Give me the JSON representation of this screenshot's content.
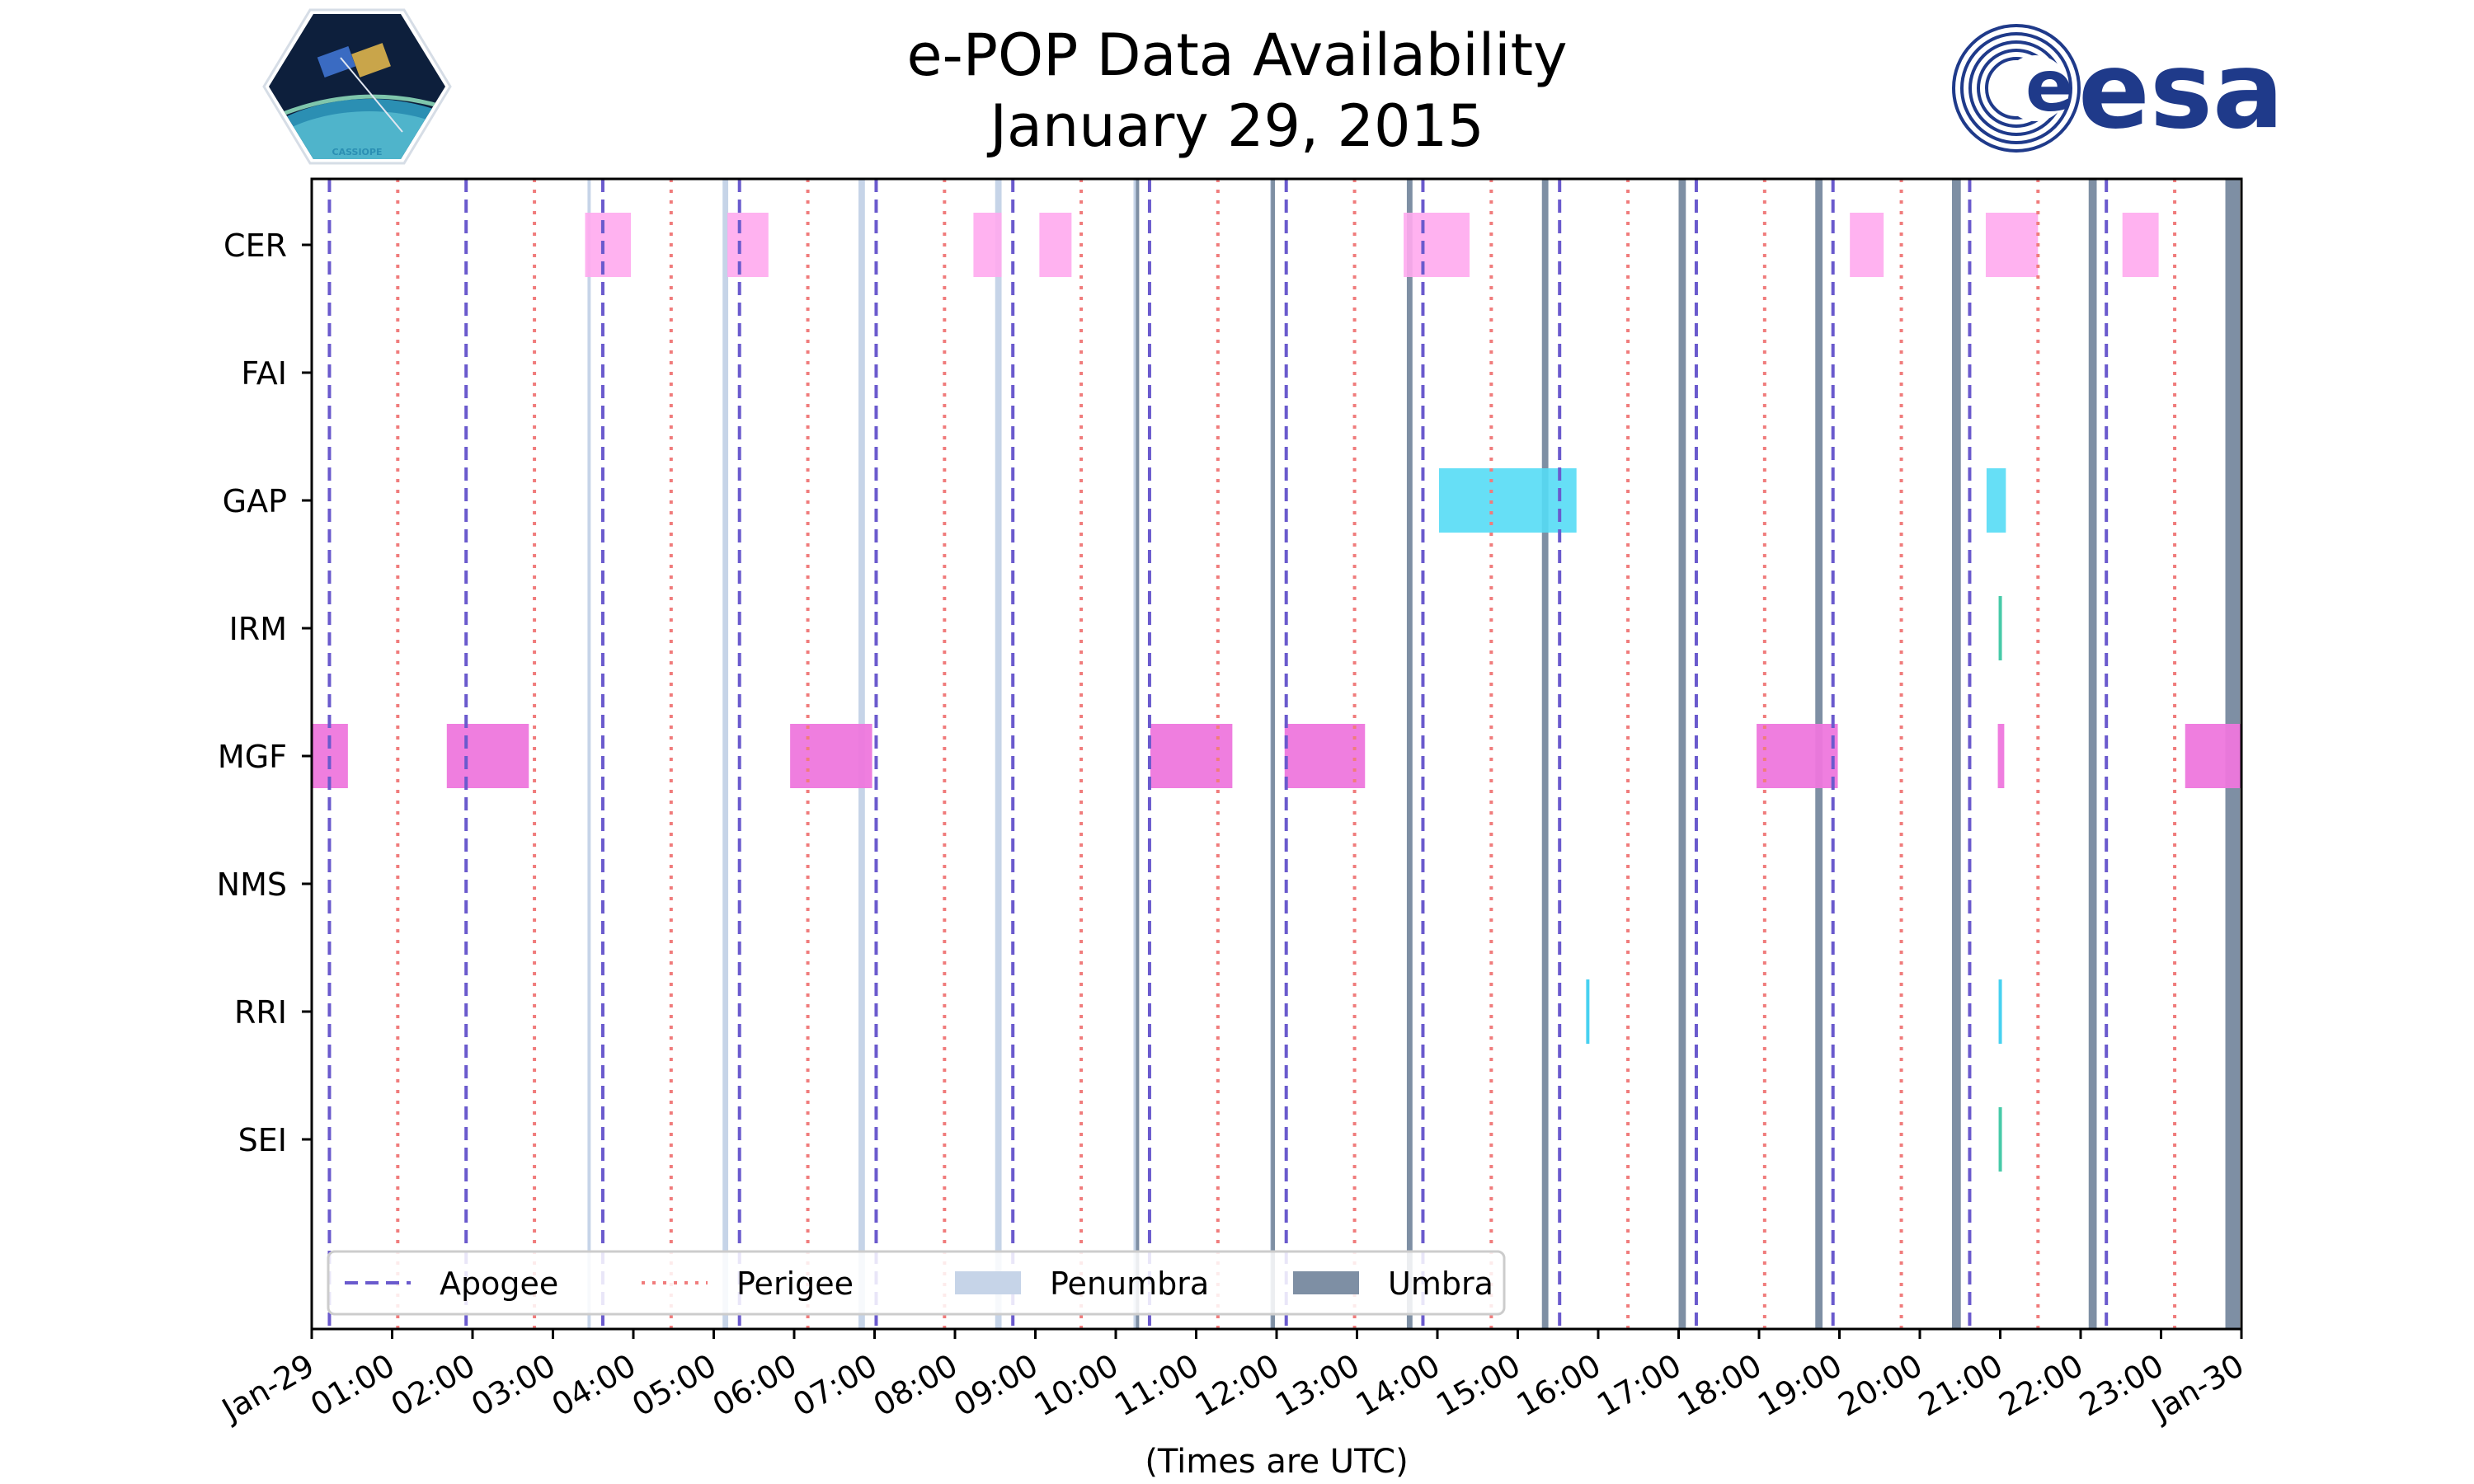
{
  "chart_data": {
    "type": "timeline",
    "title": "e-POP Data Availability",
    "subtitle": "January 29, 2015",
    "xlabel": "(Times are UTC)",
    "x_unit": "hours",
    "xlim": [
      0,
      24
    ],
    "x_ticks": [
      {
        "value": 0,
        "label": "Jan-29"
      },
      {
        "value": 1,
        "label": "01:00"
      },
      {
        "value": 2,
        "label": "02:00"
      },
      {
        "value": 3,
        "label": "03:00"
      },
      {
        "value": 4,
        "label": "04:00"
      },
      {
        "value": 5,
        "label": "05:00"
      },
      {
        "value": 6,
        "label": "06:00"
      },
      {
        "value": 7,
        "label": "07:00"
      },
      {
        "value": 8,
        "label": "08:00"
      },
      {
        "value": 9,
        "label": "09:00"
      },
      {
        "value": 10,
        "label": "10:00"
      },
      {
        "value": 11,
        "label": "11:00"
      },
      {
        "value": 12,
        "label": "12:00"
      },
      {
        "value": 13,
        "label": "13:00"
      },
      {
        "value": 14,
        "label": "14:00"
      },
      {
        "value": 15,
        "label": "15:00"
      },
      {
        "value": 16,
        "label": "16:00"
      },
      {
        "value": 17,
        "label": "17:00"
      },
      {
        "value": 18,
        "label": "18:00"
      },
      {
        "value": 19,
        "label": "19:00"
      },
      {
        "value": 20,
        "label": "20:00"
      },
      {
        "value": 21,
        "label": "21:00"
      },
      {
        "value": 22,
        "label": "22:00"
      },
      {
        "value": 23,
        "label": "23:00"
      },
      {
        "value": 24,
        "label": "Jan-30"
      }
    ],
    "instruments": [
      "CER",
      "FAI",
      "GAP",
      "IRM",
      "MGF",
      "NMS",
      "RRI",
      "SEI"
    ],
    "colors": {
      "apogee": "#6a5acd",
      "perigee": "#f07c7c",
      "penumbra": "#c6d4e8",
      "umbra": "#7e8fa4",
      "CER": "#ffaaee",
      "GAP": "#55dcf5",
      "IRM": "#33c49e",
      "MGF": "#ee77dd",
      "RRI": "#33ccee",
      "SEI": "#33c49e"
    },
    "apogee_times": [
      0.22,
      1.92,
      3.62,
      5.32,
      7.02,
      8.72,
      10.42,
      12.12,
      13.82,
      15.52,
      17.22,
      18.92,
      20.62,
      22.32
    ],
    "perigee_times": [
      1.07,
      2.77,
      4.47,
      6.17,
      7.87,
      9.57,
      11.27,
      12.97,
      14.67,
      16.37,
      18.07,
      19.77,
      21.47,
      23.17
    ],
    "penumbra": [
      [
        3.43,
        3.47
      ],
      [
        5.11,
        5.18
      ],
      [
        6.8,
        6.88
      ],
      [
        8.5,
        8.58
      ],
      [
        10.22,
        10.28
      ],
      [
        11.92,
        11.98
      ],
      [
        13.62,
        13.68
      ],
      [
        15.32,
        15.38
      ],
      [
        17.02,
        17.08
      ],
      [
        18.72,
        18.78
      ],
      [
        20.42,
        20.48
      ],
      [
        22.12,
        22.18
      ],
      [
        23.82,
        23.88
      ]
    ],
    "umbra": [
      [
        10.25,
        10.27
      ],
      [
        11.93,
        11.98
      ],
      [
        13.62,
        13.69
      ],
      [
        15.3,
        15.38
      ],
      [
        17.0,
        17.09
      ],
      [
        18.7,
        18.79
      ],
      [
        20.4,
        20.51
      ],
      [
        22.1,
        22.2
      ],
      [
        23.8,
        23.98
      ]
    ],
    "data_blocks": {
      "CER": [
        [
          3.4,
          3.97
        ],
        [
          5.17,
          5.68
        ],
        [
          8.23,
          8.58
        ],
        [
          9.05,
          9.45
        ],
        [
          13.58,
          14.4
        ],
        [
          19.13,
          19.55
        ],
        [
          20.82,
          21.47
        ],
        [
          22.52,
          22.97
        ]
      ],
      "FAI": [],
      "GAP": [
        [
          14.02,
          15.73
        ],
        [
          20.83,
          21.07
        ]
      ],
      "IRM": [
        [
          20.98,
          21.02
        ]
      ],
      "MGF": [
        [
          0.0,
          0.45
        ],
        [
          1.68,
          2.7
        ],
        [
          5.95,
          6.97
        ],
        [
          10.43,
          11.45
        ],
        [
          12.1,
          13.1
        ],
        [
          17.97,
          18.98
        ],
        [
          20.97,
          21.05
        ],
        [
          23.3,
          24.0
        ]
      ],
      "NMS": [],
      "RRI": [
        [
          15.85,
          15.88
        ],
        [
          20.98,
          21.01
        ]
      ],
      "SEI": [
        [
          20.98,
          21.01
        ]
      ]
    },
    "legend": {
      "position": "bottom-left",
      "entries": [
        {
          "name": "Apogee",
          "style": "dashed"
        },
        {
          "name": "Perigee",
          "style": "dotted"
        },
        {
          "name": "Penumbra",
          "style": "patch"
        },
        {
          "name": "Umbra",
          "style": "patch"
        }
      ]
    }
  },
  "logos": {
    "left": "CASSIOPE",
    "right": "esa"
  }
}
